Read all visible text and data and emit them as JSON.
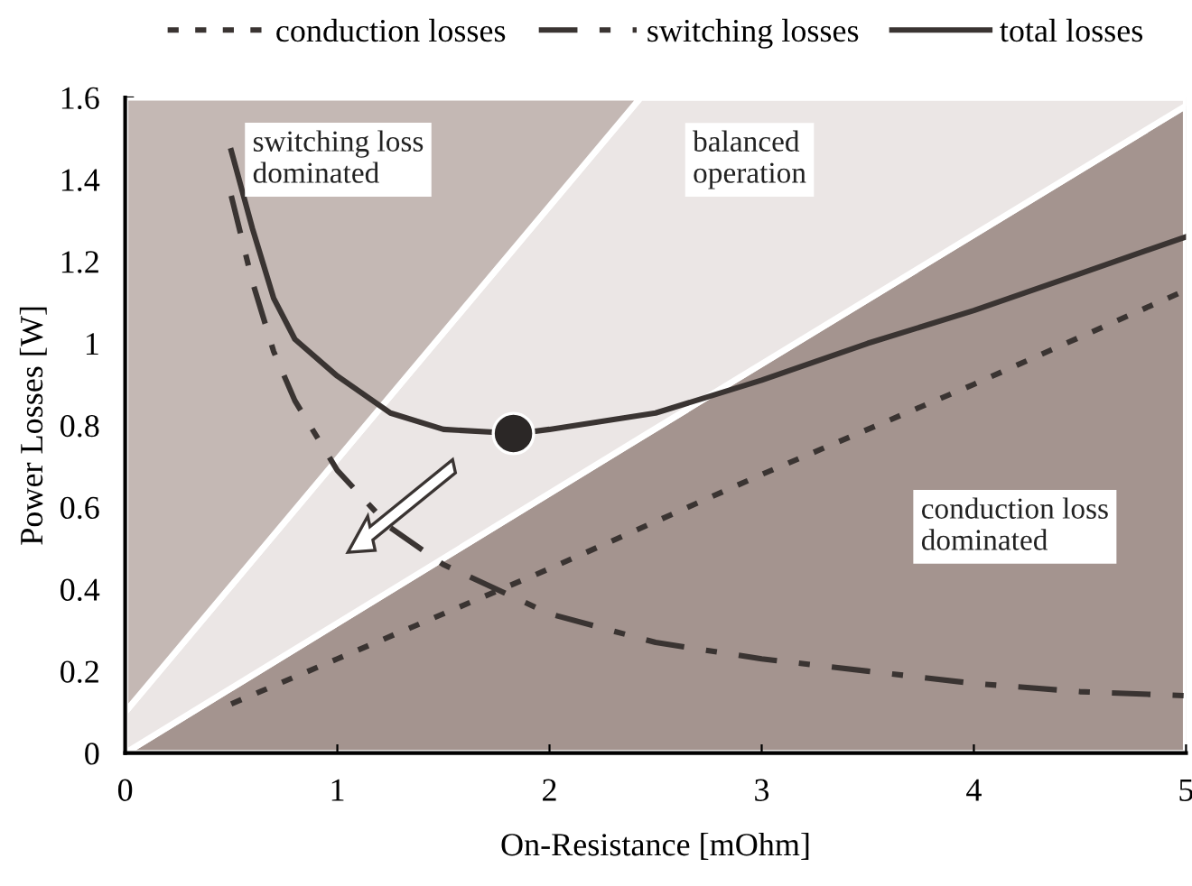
{
  "chart_data": {
    "type": "line",
    "xlabel": "On-Resistance [mOhm]",
    "ylabel": "Power Losses [W]",
    "xlim": [
      0,
      5
    ],
    "ylim": [
      0,
      1.6
    ],
    "xticks": [
      0,
      1,
      2,
      3,
      4,
      5
    ],
    "yticks": [
      0,
      0.2,
      0.4,
      0.6,
      0.8,
      1,
      1.2,
      1.4,
      1.6
    ],
    "grid": false,
    "legend": "top",
    "marker": "none",
    "stacked": true,
    "series": [
      {
        "type": "area",
        "color": "#a4948f",
        "x": [
          0,
          2.43,
          5
        ],
        "values": [
          0,
          0.77,
          1.58
        ]
      },
      {
        "type": "area",
        "color": "#ebe6e5",
        "x": [
          0,
          2.43,
          5
        ],
        "values": [
          0.1,
          0.83,
          0.02
        ]
      },
      {
        "type": "area",
        "color": "#c4b8b4",
        "x": [
          0,
          2.43,
          5
        ],
        "values": [
          1.5,
          0,
          0
        ]
      },
      {
        "name": "conduction losses",
        "color": "#3a3432",
        "line_style": "dotted",
        "x": [
          0.5,
          1,
          2,
          3,
          4,
          5
        ],
        "values": [
          0.12,
          0.23,
          0.45,
          0.68,
          0.9,
          1.13
        ]
      },
      {
        "name": "switching losses",
        "color": "#3a3432",
        "line_style": "dashed",
        "x": [
          0.5,
          0.6,
          0.7,
          0.8,
          1,
          1.25,
          1.5,
          2,
          2.5,
          3,
          3.5,
          4,
          4.5,
          5
        ],
        "values": [
          1.36,
          1.15,
          0.98,
          0.86,
          0.69,
          0.55,
          0.46,
          0.34,
          0.27,
          0.23,
          0.2,
          0.17,
          0.15,
          0.14
        ]
      },
      {
        "name": "total losses",
        "color": "#3a3432",
        "line_style": "solid",
        "x": [
          0.5,
          0.6,
          0.7,
          0.8,
          1,
          1.25,
          1.5,
          1.85,
          2,
          2.5,
          3,
          3.5,
          4,
          4.5,
          5
        ],
        "values": [
          1.47,
          1.28,
          1.11,
          1.01,
          0.92,
          0.83,
          0.79,
          0.78,
          0.79,
          0.83,
          0.91,
          1.0,
          1.08,
          1.17,
          1.26
        ]
      },
      {
        "type": "scatter",
        "color": "#2b2726",
        "marker": "circle",
        "x": [
          1.83
        ],
        "values": [
          0.78
        ]
      }
    ],
    "annotations": [
      "switching loss\ndominated",
      "balanced\noperation",
      "conduction loss\ndominated"
    ]
  }
}
